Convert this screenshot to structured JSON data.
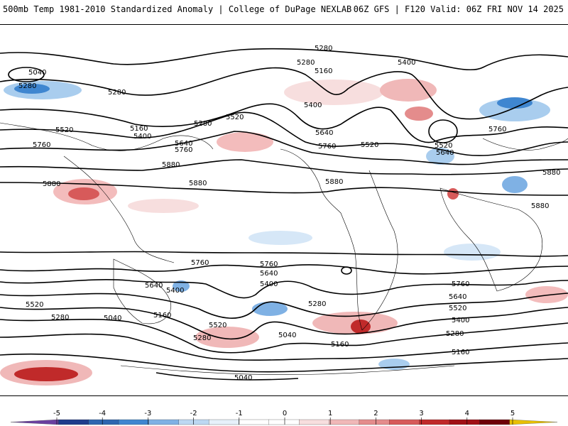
{
  "header": {
    "title_left": "500mb Temp 1981-2010 Standardized Anomaly | College of DuPage NEXLAB",
    "title_right": "06Z GFS | F120 Valid: 06Z FRI NOV 14 2025"
  },
  "colors": {
    "contour": "#000000",
    "coast": "#000000",
    "neg_strong": "#1f3c8c",
    "neg_mid": "#3f86d0",
    "neg_light": "#a9cdee",
    "pos_light": "#f3bcbc",
    "pos_mid": "#e06060",
    "pos_strong": "#b3151a"
  },
  "colorbar": {
    "ticks": [
      "-5",
      "-4",
      "-3",
      "-2",
      "-1",
      "0",
      "1",
      "2",
      "3",
      "4",
      "5"
    ],
    "colors": [
      "#6b3fa0",
      "#1f3c8c",
      "#2e66b0",
      "#3f86d0",
      "#7fb1e4",
      "#bcd8f2",
      "#e6f0fa",
      "#ffffff",
      "#ffffff",
      "#f7dede",
      "#f0b8b8",
      "#e48c8c",
      "#d75a5a",
      "#c02a2a",
      "#a01015",
      "#6e0008",
      "#e8c000"
    ]
  },
  "contour_labels": [
    {
      "text": "5280"
    },
    {
      "text": "5400"
    },
    {
      "text": "5160"
    },
    {
      "text": "5280"
    },
    {
      "text": "5040"
    },
    {
      "text": "5280"
    },
    {
      "text": "5280"
    },
    {
      "text": "5400"
    },
    {
      "text": "5520"
    },
    {
      "text": "5280"
    },
    {
      "text": "5160"
    },
    {
      "text": "5400"
    },
    {
      "text": "5520"
    },
    {
      "text": "5640"
    },
    {
      "text": "5760"
    },
    {
      "text": "5760"
    },
    {
      "text": "5640"
    },
    {
      "text": "5760"
    },
    {
      "text": "5880"
    },
    {
      "text": "5880"
    },
    {
      "text": "5880"
    },
    {
      "text": "5520"
    },
    {
      "text": "5520"
    },
    {
      "text": "5640"
    },
    {
      "text": "5760"
    },
    {
      "text": "5880"
    },
    {
      "text": "5880"
    },
    {
      "text": "5880"
    },
    {
      "text": "5760"
    },
    {
      "text": "5640"
    },
    {
      "text": "5520"
    },
    {
      "text": "5280"
    },
    {
      "text": "5400"
    },
    {
      "text": "5160"
    },
    {
      "text": "5040"
    },
    {
      "text": "5520"
    },
    {
      "text": "5280"
    },
    {
      "text": "5040"
    },
    {
      "text": "5760"
    },
    {
      "text": "5640"
    },
    {
      "text": "5400"
    },
    {
      "text": "5280"
    },
    {
      "text": "5160"
    },
    {
      "text": "5040"
    },
    {
      "text": "5760"
    },
    {
      "text": "5640"
    },
    {
      "text": "5520"
    },
    {
      "text": "5400"
    },
    {
      "text": "5280"
    },
    {
      "text": "5160"
    }
  ]
}
